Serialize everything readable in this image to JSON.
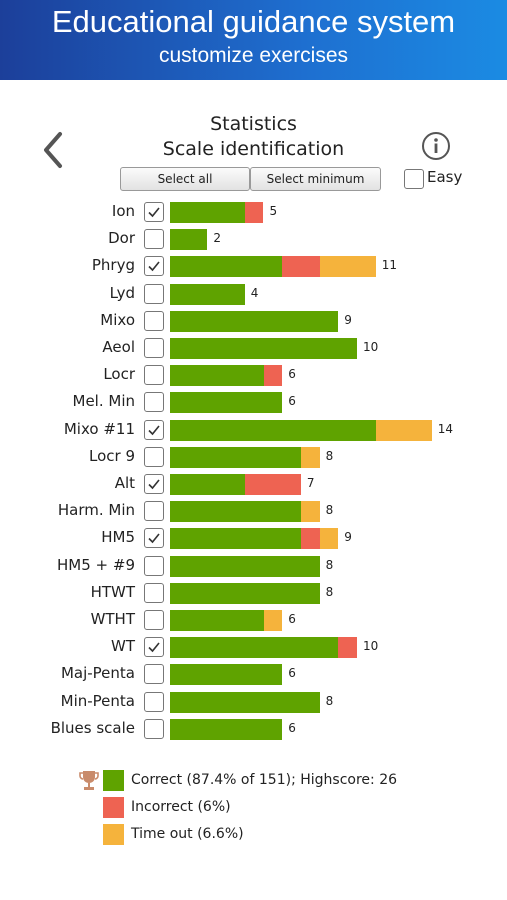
{
  "header": {
    "title": "Educational guidance system",
    "subtitle": "customize exercises"
  },
  "page": {
    "title": "Statistics",
    "subtitle": "Scale identification"
  },
  "buttons": {
    "select_all": "Select all",
    "select_minimum": "Select minimum"
  },
  "easy": {
    "label": "Easy",
    "checked": false
  },
  "icons": {
    "back": "chevron-left-icon",
    "info": "info-icon",
    "trophy": "trophy-icon"
  },
  "colors": {
    "correct": "#5fa300",
    "incorrect": "#ee6352",
    "timeout": "#f5b33c",
    "accent": "#1e6fd0"
  },
  "chart_data": {
    "type": "bar",
    "orientation": "horizontal",
    "stacked": true,
    "categories": [
      "Ion",
      "Dor",
      "Phryg",
      "Lyd",
      "Mixo",
      "Aeol",
      "Locr",
      "Mel. Min",
      "Mixo #11",
      "Locr 9",
      "Alt",
      "Harm. Min",
      "HM5",
      "HM5 + #9",
      "HTWT",
      "WTHT",
      "WT",
      "Maj-Penta",
      "Min-Penta",
      "Blues scale"
    ],
    "checked": [
      true,
      false,
      true,
      false,
      false,
      false,
      false,
      false,
      true,
      false,
      true,
      false,
      true,
      false,
      false,
      false,
      true,
      false,
      false,
      false
    ],
    "series": [
      {
        "name": "Correct",
        "values": [
          4,
          2,
          6,
          4,
          9,
          10,
          5,
          6,
          11,
          7,
          4,
          7,
          7,
          8,
          8,
          5,
          9,
          6,
          8,
          6
        ]
      },
      {
        "name": "Incorrect",
        "values": [
          1,
          0,
          2,
          0,
          0,
          0,
          1,
          0,
          0,
          0,
          3,
          0,
          1,
          0,
          0,
          0,
          1,
          0,
          0,
          0
        ]
      },
      {
        "name": "Time out",
        "values": [
          0,
          0,
          3,
          0,
          0,
          0,
          0,
          0,
          3,
          1,
          0,
          1,
          1,
          0,
          0,
          1,
          0,
          0,
          0,
          0
        ]
      }
    ],
    "totals": [
      "5",
      "2",
      "11",
      "4",
      "9",
      "10",
      "6",
      "6",
      "14",
      "8",
      "7",
      "8",
      "9",
      "8",
      "8",
      "6",
      "10",
      "6",
      "8",
      "6"
    ]
  },
  "legend": {
    "correct": "Correct (87.4% of 151); Highscore: 26",
    "incorrect": "Incorrect (6%)",
    "timeout": "Time out (6.6%)"
  }
}
